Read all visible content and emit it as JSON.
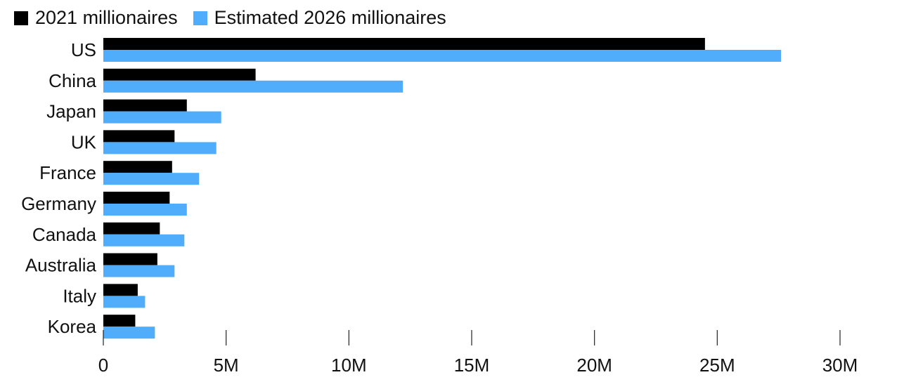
{
  "chart_data": {
    "type": "bar",
    "orientation": "horizontal",
    "categories": [
      "US",
      "China",
      "Japan",
      "UK",
      "France",
      "Germany",
      "Canada",
      "Australia",
      "Italy",
      "Korea"
    ],
    "series": [
      {
        "name": "2021 millionaires",
        "color": "#000000",
        "values": [
          24.5,
          6.2,
          3.4,
          2.9,
          2.8,
          2.7,
          2.3,
          2.2,
          1.4,
          1.3
        ]
      },
      {
        "name": "Estimated 2026 millionaires",
        "color": "#4fadfb",
        "values": [
          27.6,
          12.2,
          4.8,
          4.6,
          3.9,
          3.4,
          3.3,
          2.9,
          1.7,
          2.1
        ]
      }
    ],
    "xlim": [
      0,
      30
    ],
    "xticks": [
      {
        "value": 0,
        "label": "0"
      },
      {
        "value": 5,
        "label": "5M"
      },
      {
        "value": 10,
        "label": "10M"
      },
      {
        "value": 15,
        "label": "15M"
      },
      {
        "value": 20,
        "label": "20M"
      },
      {
        "value": 25,
        "label": "25M"
      },
      {
        "value": 30,
        "label": "30M"
      }
    ],
    "unit": "millions",
    "legend_position": "top-left",
    "grid": false
  }
}
